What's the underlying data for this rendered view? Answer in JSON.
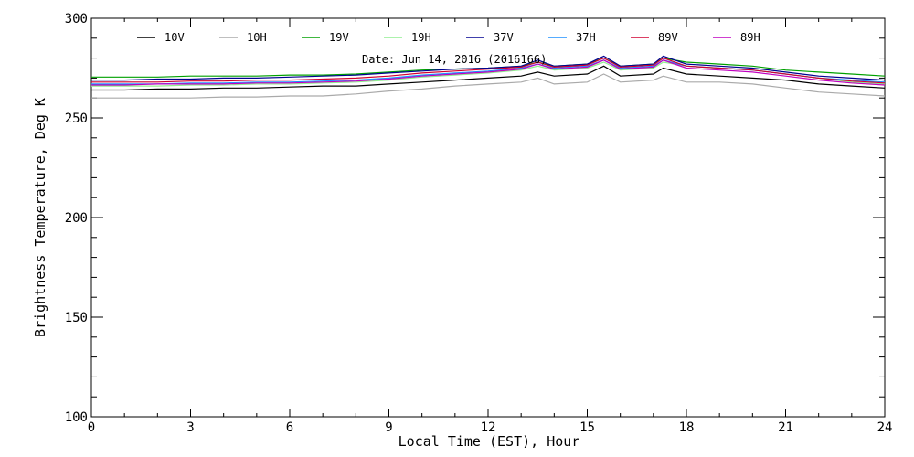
{
  "chart_data": {
    "type": "line",
    "xlabel": "Local Time (EST), Hour",
    "ylabel": "Brightness Temperature, Deg K",
    "annotation": "Date: Jun 14, 2016 (2016166)",
    "xlim": [
      0,
      24
    ],
    "ylim": [
      100,
      300
    ],
    "xticks": [
      0,
      3,
      6,
      9,
      12,
      15,
      18,
      21,
      24
    ],
    "yticks": [
      100,
      150,
      200,
      250,
      300
    ],
    "grid": false,
    "legend_position": "top",
    "x": [
      0,
      1,
      2,
      3,
      4,
      5,
      6,
      7,
      8,
      9,
      10,
      11,
      12,
      13,
      13.5,
      14,
      15,
      15.5,
      16,
      17,
      17.3,
      18,
      19,
      20,
      21,
      22,
      23,
      24
    ],
    "series": [
      {
        "name": "10V",
        "color": "#000000",
        "values": [
          264,
          264,
          264.5,
          264.5,
          265,
          265,
          265.5,
          266,
          266,
          267,
          268,
          269,
          270,
          271,
          273,
          271,
          272,
          276,
          271,
          272,
          275,
          272,
          271,
          270,
          269,
          267,
          266,
          265
        ]
      },
      {
        "name": "10H",
        "color": "#aaaaaa",
        "values": [
          260,
          260,
          260,
          260,
          260.5,
          260.5,
          261,
          261,
          262,
          263.5,
          264.5,
          266,
          267,
          268,
          270,
          267,
          268,
          272,
          268,
          269,
          271,
          268,
          268,
          267,
          265,
          263,
          262,
          261
        ]
      },
      {
        "name": "19V",
        "color": "#00a000",
        "values": [
          270.5,
          270.5,
          270.5,
          271,
          271,
          271,
          271.5,
          271.5,
          272,
          273,
          274,
          274.5,
          275,
          276,
          278,
          276,
          277,
          280,
          276,
          277,
          280,
          278,
          277,
          276,
          274,
          273,
          272,
          271
        ]
      },
      {
        "name": "19H",
        "color": "#90ee90",
        "values": [
          266,
          266,
          266,
          266.5,
          266.5,
          267,
          267,
          267.5,
          268,
          269,
          270.5,
          271.5,
          272.5,
          274,
          276,
          274,
          275,
          278,
          274,
          275,
          278,
          276,
          275,
          274,
          272,
          270,
          268,
          267
        ]
      },
      {
        "name": "37V",
        "color": "#000090",
        "values": [
          269,
          269,
          269.5,
          269.5,
          270,
          270,
          270.5,
          271,
          271.5,
          272.5,
          273.5,
          274.5,
          275,
          276,
          279,
          276,
          277,
          281,
          276,
          277,
          281,
          277,
          276,
          275,
          273,
          271,
          270,
          269
        ]
      },
      {
        "name": "37H",
        "color": "#1e90ff",
        "values": [
          267,
          267,
          267,
          267.5,
          267.5,
          268,
          268,
          268.5,
          269,
          270,
          271.5,
          272.5,
          273.5,
          275,
          277,
          275,
          276,
          279,
          275,
          276,
          279,
          276,
          275,
          274,
          272,
          270,
          269,
          268
        ]
      },
      {
        "name": "89V",
        "color": "#d00030",
        "values": [
          268,
          268,
          268,
          268.5,
          268.5,
          269,
          269,
          269.5,
          270,
          271,
          272.5,
          273.5,
          274.5,
          275.5,
          278,
          275.5,
          276.5,
          280,
          275.5,
          276.5,
          280,
          276,
          275,
          274,
          272,
          270,
          268.5,
          267.5
        ]
      },
      {
        "name": "89H",
        "color": "#c000c0",
        "values": [
          266.5,
          266.5,
          267,
          267,
          267,
          267.5,
          267.5,
          268,
          268.5,
          269.5,
          271,
          272,
          273,
          274.5,
          277,
          274.5,
          275.5,
          279,
          274.5,
          275.5,
          279,
          275,
          274,
          273,
          271,
          269,
          267.5,
          266.5
        ]
      }
    ]
  }
}
